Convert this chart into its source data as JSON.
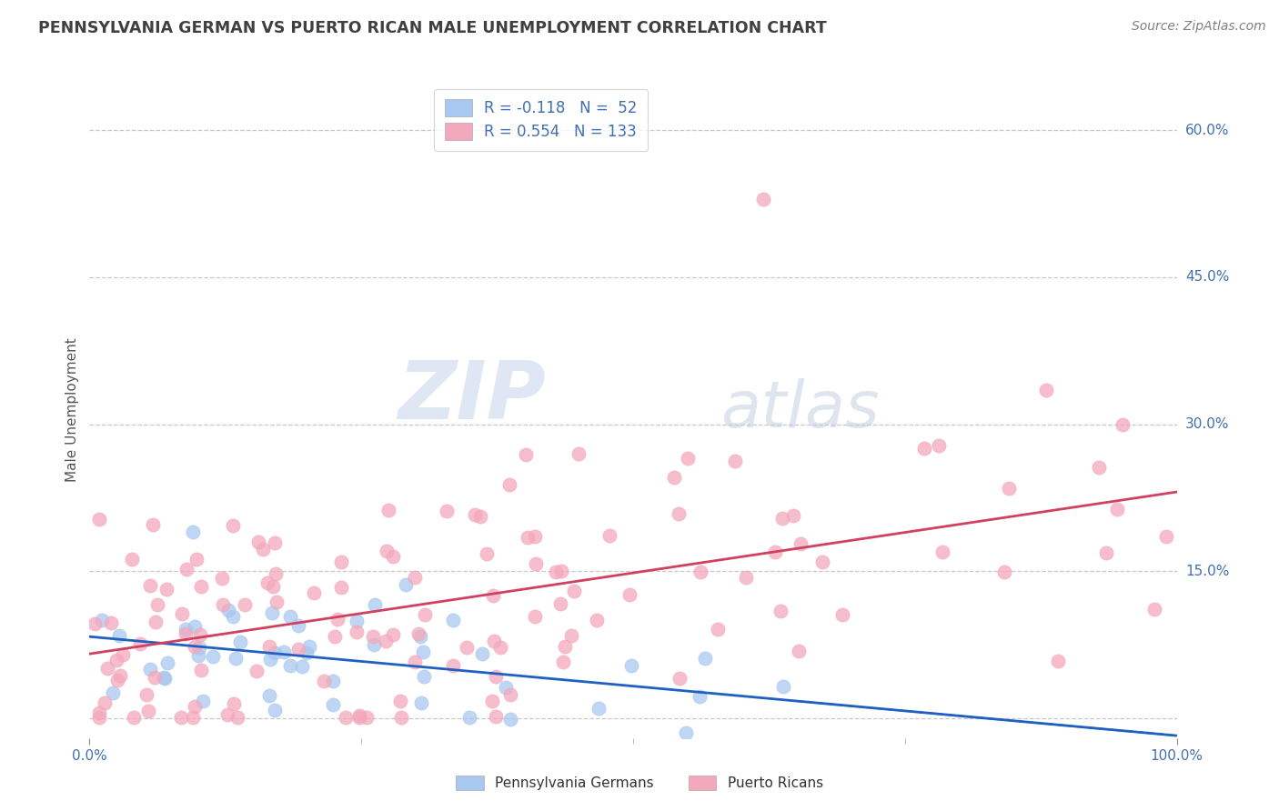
{
  "title": "PENNSYLVANIA GERMAN VS PUERTO RICAN MALE UNEMPLOYMENT CORRELATION CHART",
  "source": "Source: ZipAtlas.com",
  "ylabel": "Male Unemployment",
  "xlim": [
    0,
    1.0
  ],
  "ylim": [
    -0.02,
    0.65
  ],
  "ytick_positions": [
    0.0,
    0.15,
    0.3,
    0.45,
    0.6
  ],
  "ytick_labels": [
    "",
    "15.0%",
    "30.0%",
    "45.0%",
    "60.0%"
  ],
  "blue_R": -0.118,
  "blue_N": 52,
  "pink_R": 0.554,
  "pink_N": 133,
  "blue_color": "#a8c8f0",
  "pink_color": "#f4a8bc",
  "blue_line_color": "#2060c0",
  "pink_line_color": "#d04060",
  "grid_color": "#c8c8c8",
  "background_color": "#ffffff",
  "watermark_ZIP": "ZIP",
  "watermark_atlas": "atlas",
  "legend_label_blue": "Pennsylvania Germans",
  "legend_label_pink": "Puerto Ricans",
  "title_color": "#404040",
  "source_color": "#808080",
  "axis_label_color": "#4070b0",
  "tick_label_color": "#4070b0"
}
